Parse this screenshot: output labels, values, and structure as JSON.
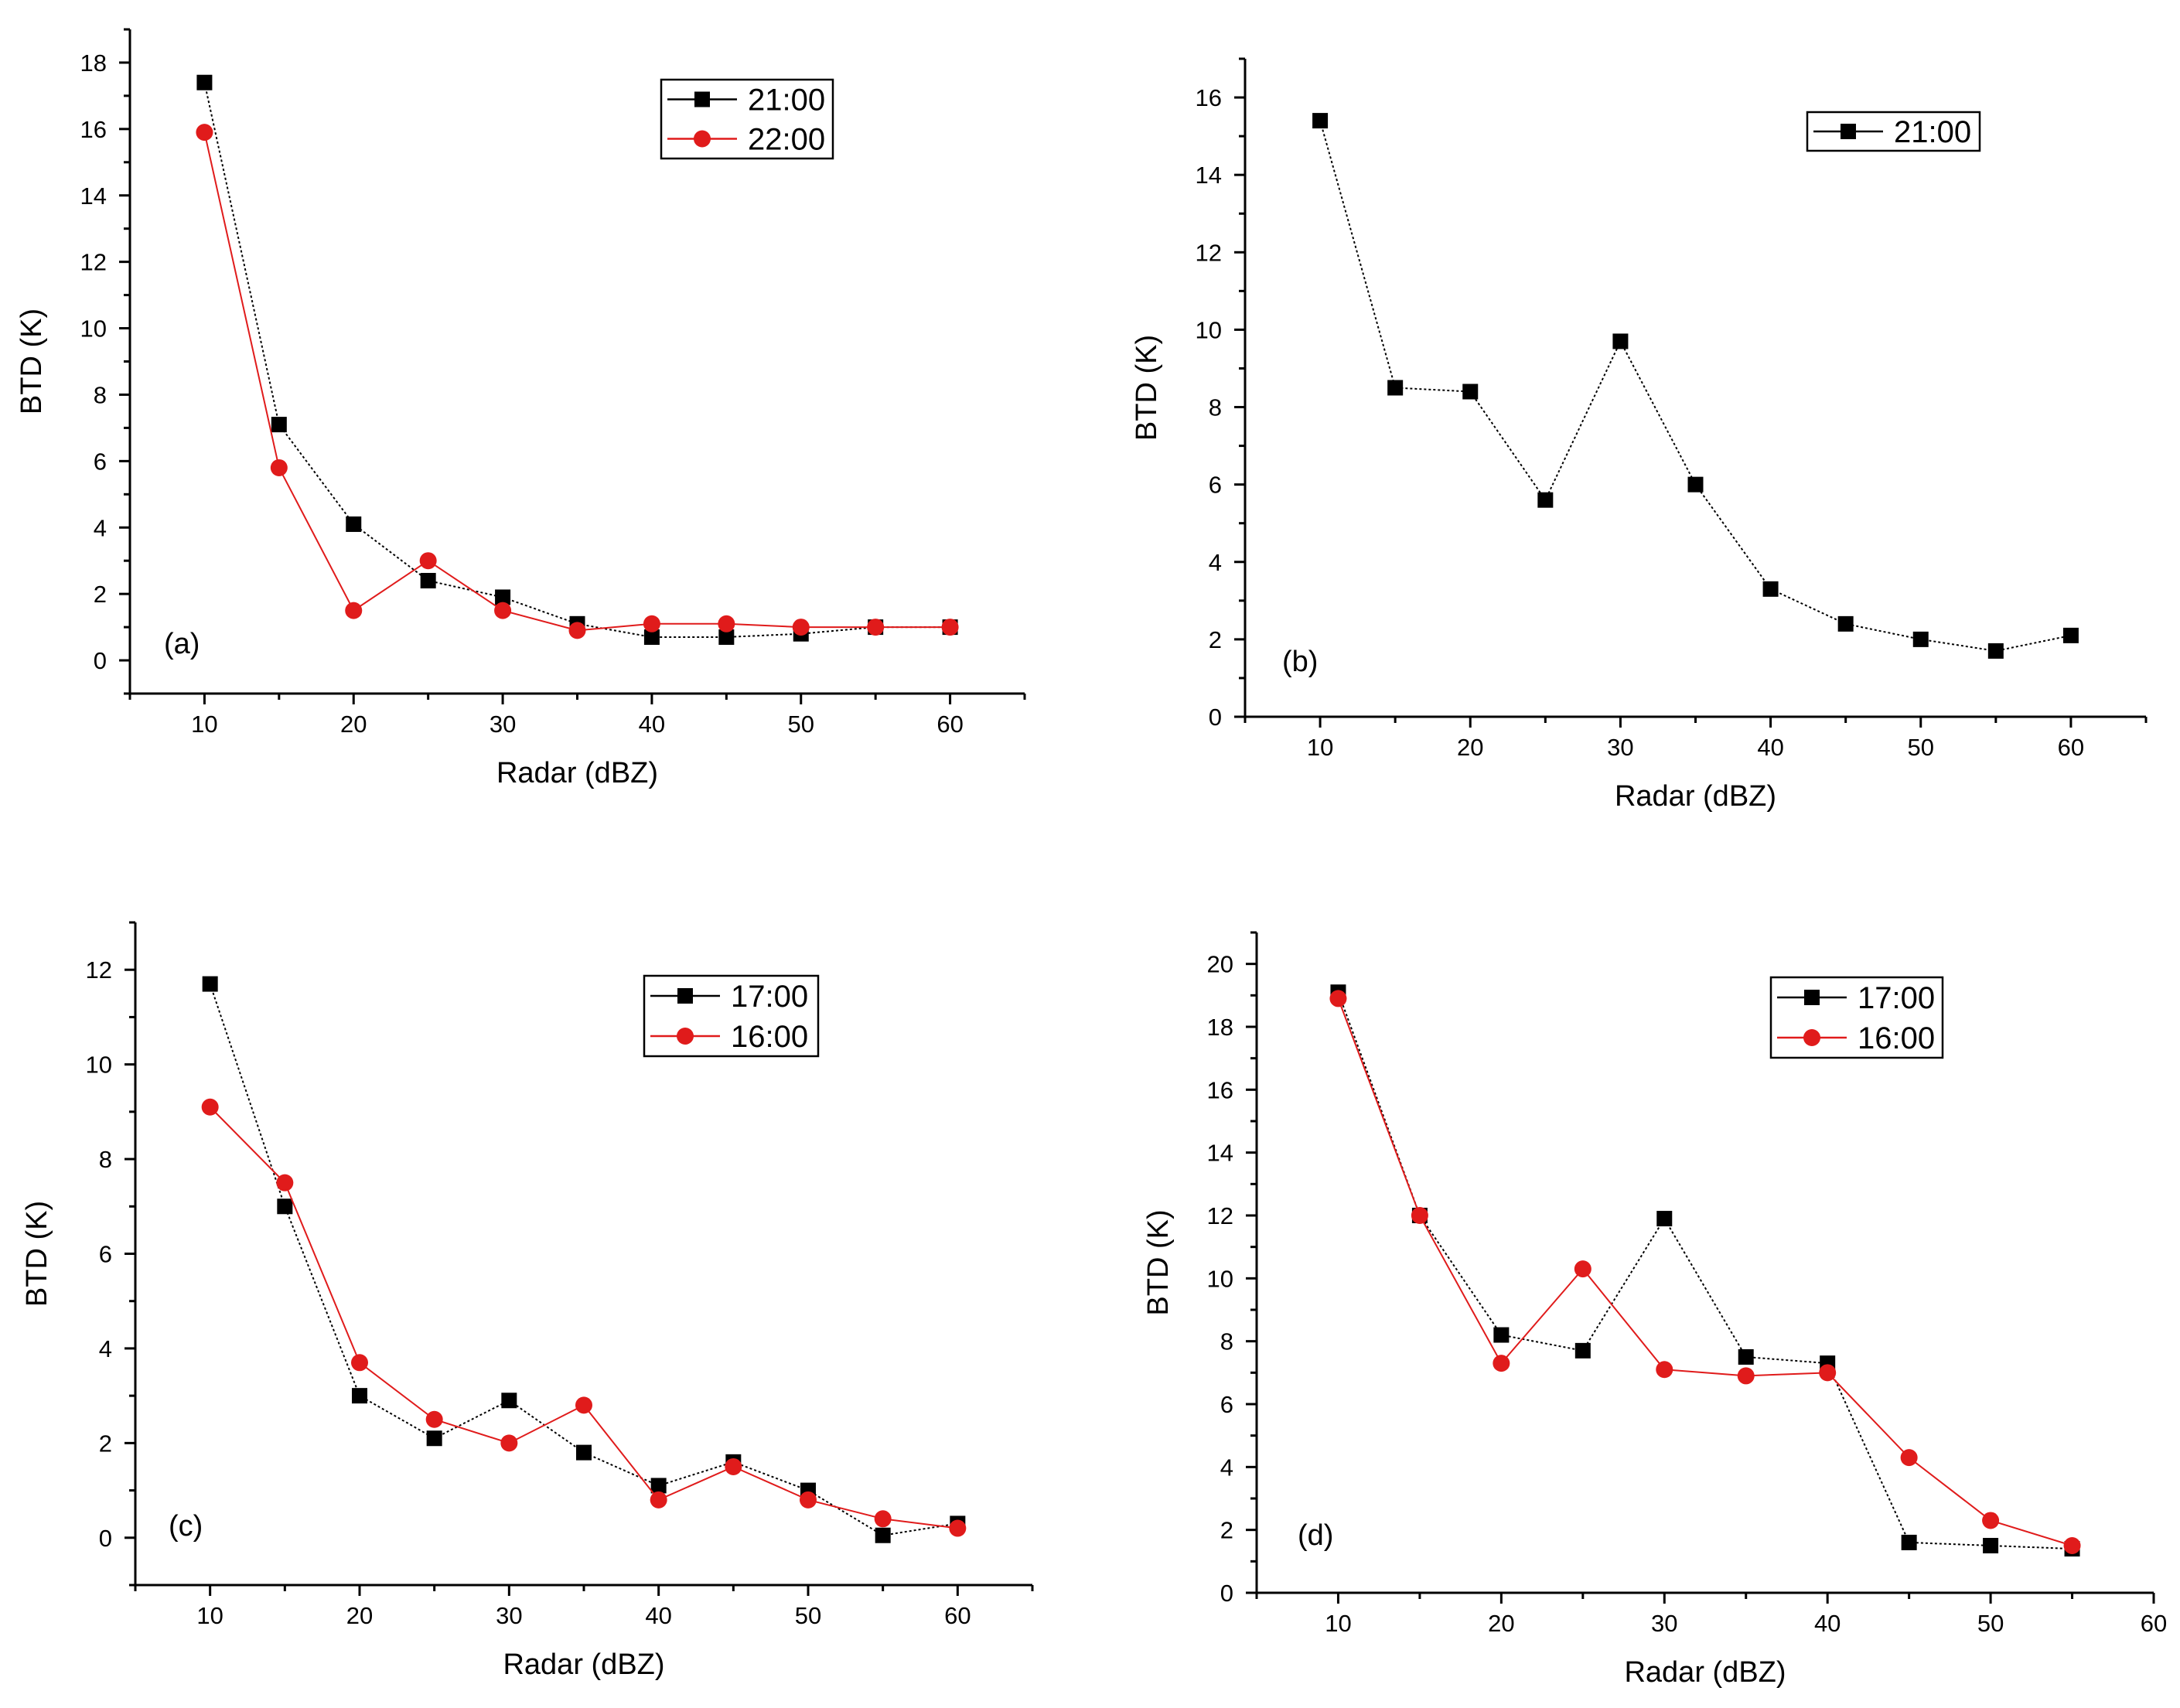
{
  "chart_data": [
    {
      "type": "line",
      "panel": "(a)",
      "xlabel": "Radar (dBZ)",
      "ylabel": "BTD (K)",
      "xlim": [
        5,
        65
      ],
      "ylim": [
        -1,
        19
      ],
      "xticks": [
        10,
        20,
        30,
        40,
        50,
        60
      ],
      "yticks": [
        0,
        2,
        4,
        6,
        8,
        10,
        12,
        14,
        16,
        18
      ],
      "legend_position": "top-right",
      "series": [
        {
          "name": "21:00",
          "color": "#000000",
          "marker": "square",
          "line": "dotted",
          "x": [
            10,
            15,
            20,
            25,
            30,
            35,
            40,
            45,
            50,
            55,
            60
          ],
          "y": [
            17.4,
            7.1,
            4.1,
            2.4,
            1.9,
            1.1,
            0.7,
            0.7,
            0.8,
            1.0,
            1.0
          ]
        },
        {
          "name": "22:00",
          "color": "#e01b1b",
          "marker": "circle",
          "line": "solid",
          "x": [
            10,
            15,
            20,
            25,
            30,
            35,
            40,
            45,
            50,
            55,
            60
          ],
          "y": [
            15.9,
            5.8,
            1.5,
            3.0,
            1.5,
            0.9,
            1.1,
            1.1,
            1.0,
            1.0,
            1.0
          ]
        }
      ]
    },
    {
      "type": "line",
      "panel": "(b)",
      "xlabel": "Radar (dBZ)",
      "ylabel": "BTD (K)",
      "xlim": [
        5,
        65
      ],
      "ylim": [
        0,
        17
      ],
      "xticks": [
        10,
        20,
        30,
        40,
        50,
        60
      ],
      "yticks": [
        0,
        2,
        4,
        6,
        8,
        10,
        12,
        14,
        16
      ],
      "legend_position": "top-right",
      "series": [
        {
          "name": "21:00",
          "color": "#000000",
          "marker": "square",
          "line": "dotted",
          "x": [
            10,
            15,
            20,
            25,
            30,
            35,
            40,
            45,
            50,
            55,
            60
          ],
          "y": [
            15.4,
            8.5,
            8.4,
            5.6,
            9.7,
            6.0,
            3.3,
            2.4,
            2.0,
            1.7,
            2.1
          ]
        }
      ]
    },
    {
      "type": "line",
      "panel": "(c)",
      "xlabel": "Radar (dBZ)",
      "ylabel": "BTD (K)",
      "xlim": [
        5,
        65
      ],
      "ylim": [
        -1,
        13
      ],
      "xticks": [
        10,
        20,
        30,
        40,
        50,
        60
      ],
      "yticks": [
        0,
        2,
        4,
        6,
        8,
        10,
        12
      ],
      "legend_position": "top-right",
      "series": [
        {
          "name": "17:00",
          "color": "#000000",
          "marker": "square",
          "line": "dotted",
          "x": [
            10,
            15,
            20,
            25,
            30,
            35,
            40,
            45,
            50,
            55,
            60
          ],
          "y": [
            11.7,
            7.0,
            3.0,
            2.1,
            2.9,
            1.8,
            1.1,
            1.6,
            1.0,
            0.05,
            0.3
          ]
        },
        {
          "name": "16:00",
          "color": "#e01b1b",
          "marker": "circle",
          "line": "solid",
          "x": [
            10,
            15,
            20,
            25,
            30,
            35,
            40,
            45,
            50,
            55,
            60
          ],
          "y": [
            9.1,
            7.5,
            3.7,
            2.5,
            2.0,
            2.8,
            0.8,
            1.5,
            0.8,
            0.4,
            0.2
          ]
        }
      ]
    },
    {
      "type": "line",
      "panel": "(d)",
      "xlabel": "Radar (dBZ)",
      "ylabel": "BTD (K)",
      "xlim": [
        5,
        60
      ],
      "ylim": [
        0,
        21
      ],
      "xticks": [
        10,
        20,
        30,
        40,
        50,
        60
      ],
      "yticks": [
        0,
        2,
        4,
        6,
        8,
        10,
        12,
        14,
        16,
        18,
        20
      ],
      "legend_position": "top-right",
      "series": [
        {
          "name": "17:00",
          "color": "#000000",
          "marker": "square",
          "line": "dotted",
          "x": [
            10,
            15,
            20,
            25,
            30,
            35,
            40,
            45,
            50,
            55
          ],
          "y": [
            19.1,
            12.0,
            8.2,
            7.7,
            11.9,
            7.5,
            7.3,
            1.6,
            1.5,
            1.4
          ]
        },
        {
          "name": "16:00",
          "color": "#e01b1b",
          "marker": "circle",
          "line": "solid",
          "x": [
            10,
            15,
            20,
            25,
            30,
            35,
            40,
            45,
            50,
            55
          ],
          "y": [
            18.9,
            12.0,
            7.3,
            10.3,
            7.1,
            6.9,
            7.0,
            4.3,
            2.3,
            1.5
          ]
        }
      ]
    }
  ]
}
